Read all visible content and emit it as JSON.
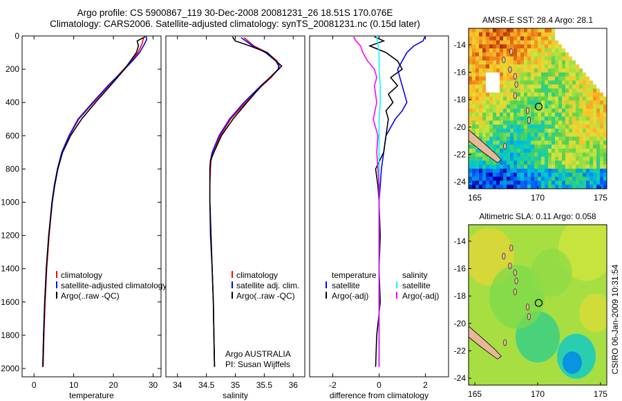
{
  "header": {
    "line1": "Argo profile: CS 5900867_119 30-Dec-2008 20081231_26 18.51S 170.076E",
    "line2": "Climatology: CARS2006. Satellite-adjusted climatology: synTS_20081231.nc (0.15d later)"
  },
  "chart_data": [
    {
      "type": "line",
      "xlabel": "temperature",
      "xlim": [
        -3,
        32
      ],
      "xticks": [
        0,
        10,
        20,
        30
      ],
      "ylim": [
        2050,
        0
      ],
      "yticks": [
        0,
        200,
        400,
        600,
        800,
        1000,
        1200,
        1400,
        1600,
        1800,
        2000
      ],
      "yreverse": true,
      "legend": [
        "climatology",
        "satellite-adjusted climatology",
        "Argo(..raw -QC)"
      ],
      "series": [
        {
          "name": "climatology",
          "color": "#ff0000",
          "depth": [
            10,
            50,
            100,
            150,
            200,
            300,
            400,
            500,
            600,
            700,
            800,
            900,
            1000,
            1200,
            1400,
            1600,
            1800,
            1990
          ],
          "values": [
            27.6,
            27.2,
            26.2,
            24.6,
            22.6,
            18.8,
            15.0,
            11.3,
            8.9,
            7.1,
            6.0,
            5.2,
            4.6,
            3.8,
            3.2,
            2.8,
            2.5,
            2.3
          ]
        },
        {
          "name": "satellite-adjusted climatology",
          "color": "#0000ff",
          "depth": [
            0,
            20,
            50,
            100,
            150,
            200,
            300,
            400,
            500,
            600,
            700,
            800,
            900,
            1000,
            1200,
            1400,
            1600,
            1800,
            1990
          ],
          "values": [
            28.2,
            28.4,
            27.8,
            26.6,
            24.8,
            22.8,
            18.6,
            14.8,
            11.1,
            8.8,
            7.0,
            5.9,
            5.1,
            4.5,
            3.7,
            3.1,
            2.7,
            2.4,
            2.2
          ]
        },
        {
          "name": "Argo(..raw -QC)",
          "color": "#000000",
          "depth": [
            5,
            30,
            60,
            100,
            150,
            200,
            300,
            400,
            500,
            600,
            700,
            800,
            900,
            1000,
            1200,
            1400,
            1600,
            1800,
            1990
          ],
          "values": [
            28.0,
            26.0,
            26.3,
            25.8,
            24.3,
            22.8,
            19.2,
            15.5,
            12.0,
            9.2,
            7.2,
            6.0,
            5.2,
            4.6,
            3.7,
            3.1,
            2.7,
            2.4,
            2.2
          ]
        }
      ]
    },
    {
      "type": "line",
      "xlabel": "salinity",
      "xlim": [
        33.8,
        36.2
      ],
      "xticks": [
        34,
        34.5,
        35,
        35.5,
        36
      ],
      "ylim": [
        2050,
        0
      ],
      "yreverse": true,
      "legend": [
        "climatology",
        "satellite adj. clim.",
        "Argo(..raw -QC)"
      ],
      "annotation": [
        "Argo AUSTRALIA",
        "PI: Susan Wijffels"
      ],
      "series": [
        {
          "name": "climatology",
          "color": "#ff0000",
          "depth": [
            10,
            60,
            100,
            150,
            180,
            200,
            250,
            300,
            400,
            500,
            600,
            700,
            750,
            800,
            900,
            1000,
            1200,
            1400,
            1600,
            1800,
            1990
          ],
          "values": [
            35.15,
            35.32,
            35.55,
            35.72,
            35.76,
            35.74,
            35.62,
            35.46,
            35.18,
            34.92,
            34.74,
            34.62,
            34.58,
            34.57,
            34.56,
            34.56,
            34.58,
            34.6,
            34.62,
            34.63,
            34.64
          ]
        },
        {
          "name": "satellite adj. clim.",
          "color": "#0000ff",
          "depth": [
            10,
            60,
            100,
            150,
            180,
            200,
            250,
            300,
            400,
            500,
            600,
            700,
            750,
            800,
            900,
            1000,
            1200,
            1400,
            1600,
            1800,
            1990
          ],
          "values": [
            35.1,
            35.3,
            35.52,
            35.7,
            35.75,
            35.74,
            35.6,
            35.44,
            35.15,
            34.9,
            34.72,
            34.6,
            34.57,
            34.56,
            34.56,
            34.56,
            34.57,
            34.6,
            34.62,
            34.63,
            34.64
          ]
        },
        {
          "name": "Argo(..raw -QC)",
          "color": "#000000",
          "depth": [
            5,
            30,
            60,
            100,
            150,
            180,
            200,
            250,
            300,
            400,
            500,
            600,
            700,
            750,
            800,
            900,
            1000,
            1200,
            1400,
            1600,
            1800,
            1990
          ],
          "values": [
            34.95,
            35.0,
            35.25,
            35.55,
            35.7,
            35.8,
            35.75,
            35.6,
            35.45,
            35.2,
            34.96,
            34.76,
            34.63,
            34.57,
            34.56,
            34.56,
            34.56,
            34.58,
            34.6,
            34.62,
            34.63,
            34.64
          ]
        }
      ]
    },
    {
      "type": "line",
      "xlabel": "difference from climatology",
      "xlim": [
        -3,
        3
      ],
      "xticks": [
        -2,
        0,
        2
      ],
      "ylim": [
        2050,
        0
      ],
      "yreverse": true,
      "legend_columns": [
        {
          "title": "temperature",
          "items": [
            "satellite",
            "Argo(-adj)"
          ]
        },
        {
          "title": "salinity",
          "items": [
            "satellite",
            "Argo(-adj)"
          ]
        }
      ],
      "series": [
        {
          "name": "temperature satellite",
          "color": "#0000ff",
          "depth": [
            0,
            30,
            60,
            100,
            150,
            200,
            250,
            300,
            350,
            400,
            450,
            500,
            600,
            700,
            800,
            900,
            1000,
            1200,
            1400,
            1600,
            1800,
            1990
          ],
          "values": [
            2.0,
            1.9,
            1.5,
            1.2,
            1.0,
            0.8,
            0.9,
            1.0,
            1.1,
            1.2,
            1.0,
            0.7,
            0.3,
            0.2,
            0.1,
            0.05,
            0.0,
            0.0,
            0.0,
            0.0,
            0.0,
            0.0
          ]
        },
        {
          "name": "temperature Argo(-adj)",
          "color": "#000000",
          "depth": [
            5,
            30,
            60,
            100,
            150,
            200,
            250,
            300,
            350,
            400,
            450,
            500,
            600,
            700,
            800,
            900,
            1000,
            1200,
            1400,
            1600,
            1800,
            1990
          ],
          "values": [
            -0.2,
            0.2,
            -0.4,
            0.3,
            0.8,
            1.0,
            0.5,
            0.8,
            0.4,
            0.6,
            0.3,
            0.4,
            0.3,
            0.2,
            -0.15,
            -0.05,
            0.0,
            0.05,
            0.0,
            0.05,
            -0.1,
            -0.15
          ]
        },
        {
          "name": "salinity satellite",
          "color": "#00ffff",
          "depth": [
            0,
            50,
            100,
            200,
            300,
            400,
            500,
            600,
            800,
            1000,
            1200,
            1400,
            1600,
            1800,
            1990
          ],
          "values": [
            -0.1,
            -0.05,
            0.0,
            0.0,
            0.05,
            0.05,
            0.0,
            0.0,
            0.0,
            0.0,
            0.0,
            0.0,
            0.0,
            0.0,
            0.0
          ]
        },
        {
          "name": "salinity Argo(-adj)",
          "color": "#ff00ff",
          "depth": [
            5,
            30,
            60,
            100,
            150,
            200,
            250,
            300,
            400,
            500,
            600,
            700,
            800,
            900,
            1000,
            1200,
            1400,
            1600,
            1800,
            1990
          ],
          "values": [
            -1.1,
            -1.0,
            -0.8,
            -0.7,
            -0.5,
            -0.2,
            -0.1,
            -0.2,
            -0.1,
            -0.25,
            -0.05,
            -0.1,
            -0.05,
            0.0,
            0.0,
            0.0,
            0.0,
            0.0,
            0.0,
            0.0
          ]
        }
      ]
    },
    {
      "type": "heatmap",
      "title": "AMSR-E SST: 28.4 Argo: 28.1",
      "xlim": [
        164.5,
        175.5
      ],
      "xticks": [
        165,
        170,
        175
      ],
      "ylim": [
        -24.5,
        -12.8
      ],
      "yticks": [
        -14,
        -16,
        -18,
        -20,
        -22,
        -24
      ],
      "marker": {
        "lon": 170.076,
        "lat": -18.51
      }
    },
    {
      "type": "heatmap",
      "title": "Altimetric SLA: 0.11 Argo: 0.058",
      "xlim": [
        164.5,
        175.5
      ],
      "xticks": [
        165,
        170,
        175
      ],
      "ylim": [
        -24.5,
        -12.8
      ],
      "yticks": [
        -14,
        -16,
        -18,
        -20,
        -22,
        -24
      ],
      "marker": {
        "lon": 170.076,
        "lat": -18.51
      }
    }
  ],
  "footer": {
    "stamp": "CSIRO 06-Jan-2009 10:31:54"
  }
}
